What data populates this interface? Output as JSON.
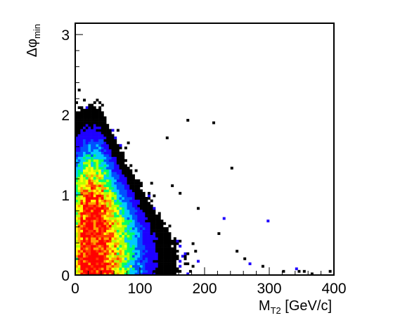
{
  "chart_data": {
    "type": "heatmap",
    "title": "",
    "xlabel": {
      "main": "M",
      "sub": "T2",
      "suffix": " [GeV/c]"
    },
    "ylabel": {
      "main": "Δφ",
      "sub": "min"
    },
    "xlim": [
      0,
      400
    ],
    "ylim": [
      0,
      3.1416
    ],
    "xticks": [
      0,
      100,
      200,
      300,
      400
    ],
    "xtick_labels": [
      "0",
      "100",
      "200",
      "300",
      "400"
    ],
    "yticks": [
      0,
      1,
      2,
      3
    ],
    "ytick_labels": [
      "0",
      "1",
      "2",
      "3"
    ],
    "bins": {
      "x": 100,
      "y": 100
    },
    "grid": false,
    "legend": "none",
    "colormap": [
      "#000000",
      "#1e00ff",
      "#0050ff",
      "#00c8ff",
      "#00ff64",
      "#b4ff00",
      "#ffff00",
      "#ffa000",
      "#ff3c00",
      "#ff0000"
    ],
    "density_core": {
      "x_peak": 20,
      "x_spread_low": 25,
      "x_spread_high": 70,
      "y_max_at_core": 1.5
    },
    "sparse_points": [
      [
        172,
        1.94
      ],
      [
        212,
        1.9
      ],
      [
        140,
        1.7
      ],
      [
        298,
        0.68
      ],
      [
        82,
        1.66
      ],
      [
        118,
        1.15
      ],
      [
        243,
        1.32
      ],
      [
        151,
        1.1
      ],
      [
        163,
        1.03
      ],
      [
        190,
        0.82
      ],
      [
        222,
        0.52
      ],
      [
        231,
        0.7
      ],
      [
        250,
        0.3
      ],
      [
        270,
        0.15
      ],
      [
        290,
        0.1
      ],
      [
        320,
        0.05
      ],
      [
        345,
        0.05
      ],
      [
        395,
        0.04
      ],
      [
        355,
        0.06
      ],
      [
        365,
        0.03
      ],
      [
        342,
        0.08
      ],
      [
        260,
        0.2
      ]
    ]
  }
}
